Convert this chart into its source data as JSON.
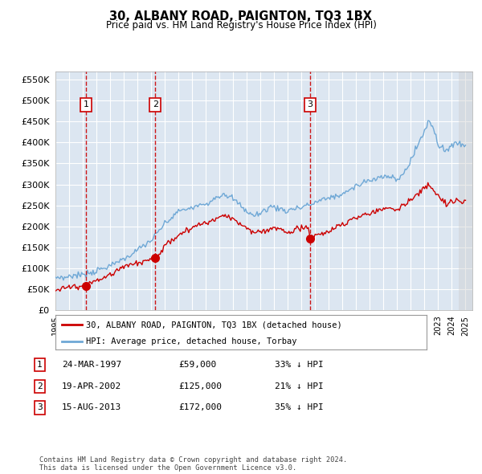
{
  "title": "30, ALBANY ROAD, PAIGNTON, TQ3 1BX",
  "subtitle": "Price paid vs. HM Land Registry's House Price Index (HPI)",
  "ylim": [
    0,
    570000
  ],
  "yticks": [
    0,
    50000,
    100000,
    150000,
    200000,
    250000,
    300000,
    350000,
    400000,
    450000,
    500000,
    550000
  ],
  "xmin": 1995.0,
  "xmax": 2025.5,
  "background_color": "#ffffff",
  "plot_bg_color": "#dce6f1",
  "grid_color": "#ffffff",
  "hpi_line_color": "#6fa8d6",
  "price_line_color": "#cc0000",
  "sale_marker_color": "#cc0000",
  "dashed_line_color": "#cc0000",
  "transactions": [
    {
      "label": "1",
      "date_num": 1997.23,
      "price": 59000,
      "text": "24-MAR-1997",
      "amount": "£59,000",
      "hpi_note": "33% ↓ HPI"
    },
    {
      "label": "2",
      "date_num": 2002.3,
      "price": 125000,
      "text": "19-APR-2002",
      "amount": "£125,000",
      "hpi_note": "21% ↓ HPI"
    },
    {
      "label": "3",
      "date_num": 2013.63,
      "price": 172000,
      "text": "15-AUG-2013",
      "amount": "£172,000",
      "hpi_note": "35% ↓ HPI"
    }
  ],
  "legend_entries": [
    "30, ALBANY ROAD, PAIGNTON, TQ3 1BX (detached house)",
    "HPI: Average price, detached house, Torbay"
  ],
  "footer_text": "Contains HM Land Registry data © Crown copyright and database right 2024.\nThis data is licensed under the Open Government Licence v3.0.",
  "xtick_years": [
    1995,
    1996,
    1997,
    1998,
    1999,
    2000,
    2001,
    2002,
    2003,
    2004,
    2005,
    2006,
    2007,
    2008,
    2009,
    2010,
    2011,
    2012,
    2013,
    2014,
    2015,
    2016,
    2017,
    2018,
    2019,
    2020,
    2021,
    2022,
    2023,
    2024,
    2025
  ]
}
